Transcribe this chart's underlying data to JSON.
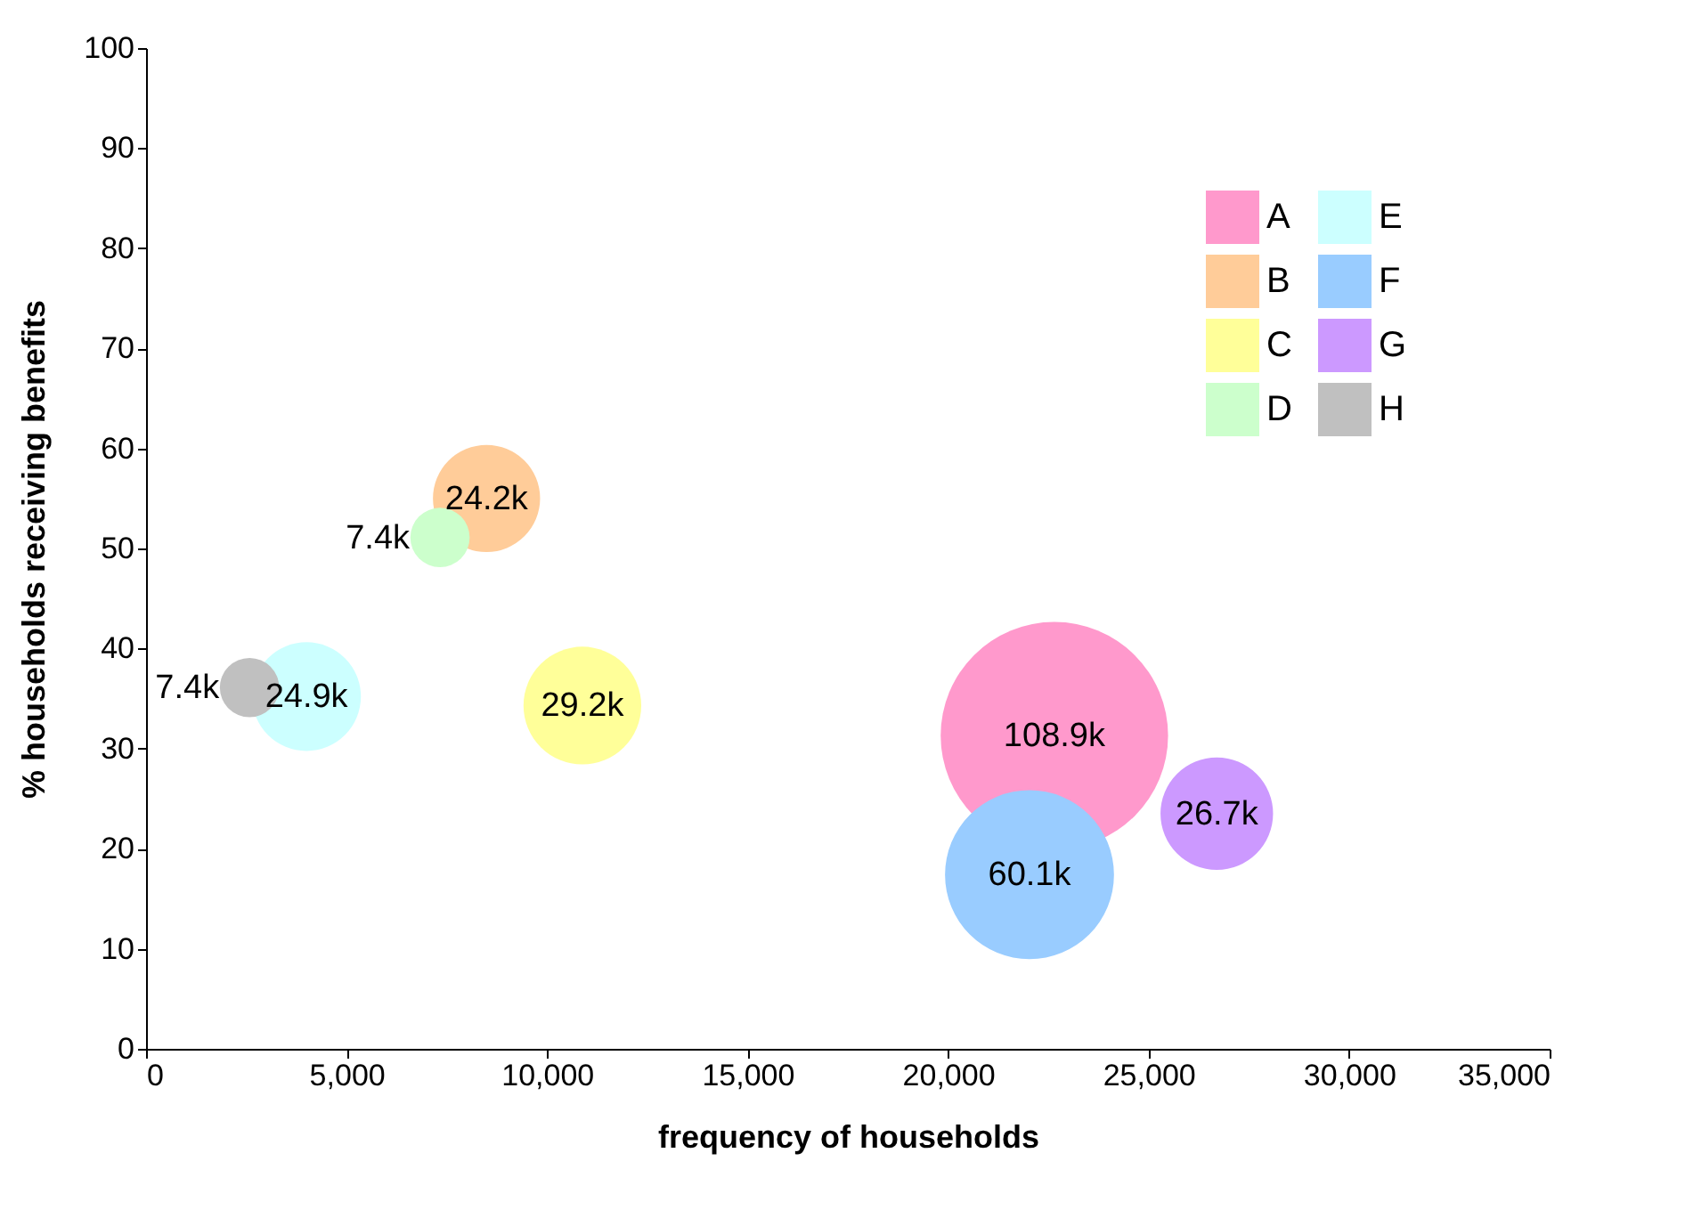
{
  "chart_data": {
    "type": "bubble",
    "xlabel": "frequency of households",
    "ylabel": "% households receiving benefits",
    "xlim": [
      0,
      35000
    ],
    "xticks": [
      {
        "value": 0,
        "label": "0"
      },
      {
        "value": 5000,
        "label": "5,000"
      },
      {
        "value": 10000,
        "label": "10,000"
      },
      {
        "value": 15000,
        "label": "15,000"
      },
      {
        "value": 20000,
        "label": "20,000"
      },
      {
        "value": 25000,
        "label": "25,000"
      },
      {
        "value": 30000,
        "label": "30,000"
      },
      {
        "value": 35000,
        "label": "35,000"
      }
    ],
    "ylim": [
      0,
      100
    ],
    "yticks": [
      0,
      10,
      20,
      30,
      40,
      50,
      60,
      70,
      80,
      90,
      100
    ],
    "grid": false,
    "legend": "top right",
    "series": [
      {
        "name": "A",
        "color": "#ff99cc",
        "x": [
          22650
        ],
        "values": [
          31.3
        ],
        "sizes": [
          1
        ]
      },
      {
        "name": "B",
        "color": "#ffcc99",
        "x": [
          8490
        ],
        "values": [
          55.0
        ],
        "sizes": [
          0.222
        ]
      },
      {
        "name": "C",
        "color": "#ffff99",
        "x": [
          10880
        ],
        "values": [
          34.3
        ],
        "sizes": [
          0.268
        ]
      },
      {
        "name": "D",
        "color": "#ccffcc",
        "x": [
          7330
        ],
        "values": [
          51.1
        ],
        "sizes": [
          0.068
        ]
      },
      {
        "name": "E",
        "color": "#ccffff",
        "x": [
          4000
        ],
        "values": [
          35.2
        ],
        "sizes": [
          0.229
        ]
      },
      {
        "name": "F",
        "color": "#99ccff",
        "x": [
          22030
        ],
        "values": [
          17.4
        ],
        "sizes": [
          0.552
        ]
      },
      {
        "name": "G",
        "color": "#cc99ff",
        "x": [
          26700
        ],
        "values": [
          23.5
        ],
        "sizes": [
          0.245
        ]
      },
      {
        "name": "H",
        "color": "#c0c0c0",
        "x": [
          2580
        ],
        "values": [
          36.1
        ],
        "sizes": [
          0.068
        ]
      }
    ],
    "annotations": [
      {
        "text": "108.9k",
        "x": 22650,
        "y": 31.3
      },
      {
        "text": "24.2k",
        "x": 8490,
        "y": 55.0
      },
      {
        "text": "29.2k",
        "x": 10880,
        "y": 34.3
      },
      {
        "text": "7.4k",
        "x": 7330,
        "y": 51.1
      },
      {
        "text": "24.9k",
        "x": 4000,
        "y": 35.2
      },
      {
        "text": "60.1k",
        "x": 22030,
        "y": 17.4
      },
      {
        "text": "26.7k",
        "x": 26700,
        "y": 23.5
      },
      {
        "text": "7.4k",
        "x": 2580,
        "y": 36.1
      }
    ]
  }
}
